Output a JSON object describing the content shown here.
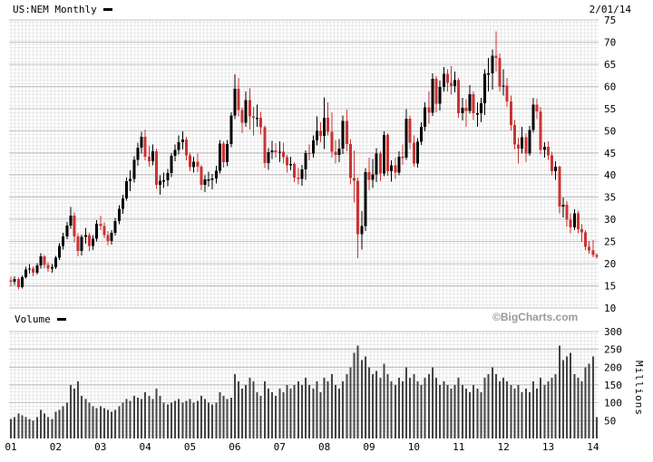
{
  "header": {
    "symbol_label": "US:NEM Monthly",
    "as_of_date": "2/01/14"
  },
  "volume": {
    "label": "Volume",
    "axis_unit": "Millions"
  },
  "watermark": "©BigCharts.com",
  "colors": {
    "up_candle": "#000000",
    "down_candle": "#cc3333",
    "volume_bar": "#444444",
    "grid_minor": "#d9d9d9",
    "grid_major": "#c3c3c3",
    "axis_text": "#000000"
  },
  "price_axis": {
    "ticks": [
      75,
      70,
      65,
      60,
      55,
      50,
      45,
      40,
      35,
      30,
      25,
      20,
      15,
      10
    ]
  },
  "volume_axis": {
    "ticks": [
      300,
      250,
      200,
      150,
      100,
      50
    ]
  },
  "x_axis": {
    "labels": [
      "01",
      "02",
      "03",
      "04",
      "05",
      "06",
      "07",
      "08",
      "09",
      "10",
      "11",
      "12",
      "13",
      "14"
    ]
  },
  "chart_data": {
    "type": "candlestick+volume-bar",
    "title": "US:NEM Monthly",
    "symbol": "US:NEM",
    "interval": "Monthly",
    "as_of": "2/01/14",
    "start_month": "2001-01",
    "price_range": [
      10,
      75
    ],
    "volume_range": [
      0,
      300
    ],
    "volume_unit": "Millions",
    "columns": [
      "open",
      "high",
      "low",
      "close",
      "volume_millions"
    ],
    "candles": [
      [
        16.2,
        17.1,
        14.9,
        15.9,
        55
      ],
      [
        15.9,
        17.2,
        15.2,
        16.5,
        60
      ],
      [
        16.5,
        16.9,
        14.2,
        14.7,
        70
      ],
      [
        14.7,
        17.4,
        14.4,
        16.9,
        65
      ],
      [
        16.9,
        19.3,
        16.6,
        18.7,
        60
      ],
      [
        18.7,
        19.9,
        17.8,
        18.9,
        55
      ],
      [
        18.9,
        19.4,
        17.2,
        18.0,
        50
      ],
      [
        18.0,
        20.1,
        17.6,
        19.6,
        60
      ],
      [
        19.6,
        22.4,
        18.9,
        21.7,
        80
      ],
      [
        21.7,
        22.0,
        19.0,
        19.7,
        70
      ],
      [
        19.7,
        20.3,
        18.2,
        18.9,
        60
      ],
      [
        18.9,
        19.9,
        18.0,
        19.2,
        55
      ],
      [
        19.2,
        21.8,
        18.8,
        21.3,
        75
      ],
      [
        21.3,
        24.6,
        20.8,
        24.0,
        80
      ],
      [
        24.0,
        27.0,
        23.2,
        26.1,
        90
      ],
      [
        26.1,
        29.4,
        25.5,
        28.6,
        100
      ],
      [
        28.6,
        32.8,
        27.9,
        30.9,
        150
      ],
      [
        30.9,
        31.6,
        24.8,
        26.1,
        140
      ],
      [
        26.1,
        26.9,
        21.6,
        22.9,
        160
      ],
      [
        22.9,
        26.6,
        21.9,
        26.0,
        120
      ],
      [
        26.0,
        28.1,
        24.5,
        26.5,
        110
      ],
      [
        26.5,
        27.0,
        22.8,
        24.0,
        100
      ],
      [
        24.0,
        26.5,
        23.1,
        25.6,
        90
      ],
      [
        25.6,
        29.8,
        25.0,
        29.0,
        85
      ],
      [
        29.0,
        30.9,
        27.6,
        28.5,
        90
      ],
      [
        28.5,
        29.3,
        25.7,
        26.5,
        85
      ],
      [
        26.5,
        27.4,
        24.1,
        25.1,
        80
      ],
      [
        25.1,
        27.6,
        24.3,
        27.0,
        75
      ],
      [
        27.0,
        30.3,
        26.4,
        29.6,
        80
      ],
      [
        29.6,
        33.2,
        28.9,
        32.4,
        90
      ],
      [
        32.4,
        35.6,
        31.3,
        34.7,
        100
      ],
      [
        34.7,
        39.4,
        34.2,
        38.6,
        110
      ],
      [
        38.6,
        41.1,
        36.4,
        39.1,
        105
      ],
      [
        39.1,
        44.2,
        38.3,
        43.4,
        120
      ],
      [
        43.4,
        47.3,
        42.1,
        46.2,
        115
      ],
      [
        46.2,
        49.8,
        44.9,
        48.6,
        110
      ],
      [
        48.6,
        50.3,
        43.3,
        44.1,
        130
      ],
      [
        44.1,
        46.6,
        41.9,
        43.1,
        120
      ],
      [
        43.1,
        46.9,
        42.2,
        45.4,
        110
      ],
      [
        45.4,
        46.0,
        36.9,
        37.8,
        140
      ],
      [
        37.8,
        39.9,
        35.6,
        38.7,
        120
      ],
      [
        38.7,
        40.6,
        37.1,
        38.8,
        100
      ],
      [
        38.8,
        41.4,
        37.5,
        40.5,
        95
      ],
      [
        40.5,
        45.0,
        39.5,
        44.3,
        100
      ],
      [
        44.3,
        46.9,
        43.1,
        45.7,
        105
      ],
      [
        45.7,
        48.9,
        44.6,
        47.4,
        110
      ],
      [
        47.4,
        49.9,
        45.8,
        48.0,
        100
      ],
      [
        48.0,
        48.6,
        43.3,
        44.4,
        105
      ],
      [
        44.4,
        45.1,
        40.9,
        41.8,
        110
      ],
      [
        41.8,
        44.1,
        40.6,
        43.0,
        100
      ],
      [
        43.0,
        44.9,
        40.7,
        41.9,
        105
      ],
      [
        41.9,
        42.3,
        36.6,
        37.8,
        120
      ],
      [
        37.8,
        39.9,
        36.2,
        39.0,
        110
      ],
      [
        39.0,
        40.8,
        37.4,
        39.0,
        100
      ],
      [
        39.0,
        40.3,
        36.8,
        39.2,
        95
      ],
      [
        39.2,
        42.1,
        38.1,
        41.0,
        100
      ],
      [
        41.0,
        47.9,
        40.4,
        47.1,
        130
      ],
      [
        47.1,
        47.6,
        41.7,
        42.9,
        120
      ],
      [
        42.9,
        47.9,
        42.0,
        47.0,
        110
      ],
      [
        47.0,
        54.2,
        46.3,
        53.4,
        115
      ],
      [
        53.4,
        62.7,
        52.6,
        59.5,
        180
      ],
      [
        59.5,
        61.9,
        53.2,
        54.7,
        160
      ],
      [
        54.7,
        55.3,
        49.4,
        51.8,
        140
      ],
      [
        51.8,
        58.9,
        50.9,
        56.9,
        150
      ],
      [
        56.9,
        59.6,
        50.3,
        53.2,
        170
      ],
      [
        53.2,
        55.4,
        48.9,
        52.9,
        160
      ],
      [
        52.9,
        55.9,
        50.9,
        52.9,
        130
      ],
      [
        52.9,
        54.3,
        49.1,
        50.8,
        120
      ],
      [
        50.8,
        51.2,
        41.6,
        42.7,
        160
      ],
      [
        42.7,
        46.1,
        41.2,
        45.2,
        140
      ],
      [
        45.2,
        47.7,
        43.6,
        45.6,
        130
      ],
      [
        45.6,
        47.2,
        43.9,
        45.2,
        120
      ],
      [
        45.2,
        47.6,
        42.9,
        45.3,
        140
      ],
      [
        45.3,
        47.3,
        42.6,
        44.0,
        130
      ],
      [
        44.0,
        44.5,
        40.6,
        42.2,
        150
      ],
      [
        42.2,
        44.1,
        41.1,
        42.5,
        140
      ],
      [
        42.5,
        42.9,
        38.4,
        39.4,
        150
      ],
      [
        39.4,
        41.6,
        37.9,
        39.1,
        160
      ],
      [
        39.1,
        42.3,
        37.6,
        41.3,
        150
      ],
      [
        41.3,
        45.6,
        38.9,
        45.0,
        170
      ],
      [
        45.0,
        46.9,
        43.3,
        44.9,
        150
      ],
      [
        44.9,
        48.9,
        43.9,
        47.8,
        140
      ],
      [
        47.8,
        53.2,
        46.7,
        50.0,
        160
      ],
      [
        50.0,
        51.9,
        47.4,
        48.8,
        130
      ],
      [
        48.8,
        57.5,
        45.9,
        52.9,
        170
      ],
      [
        52.9,
        56.4,
        48.9,
        49.8,
        160
      ],
      [
        49.8,
        54.2,
        43.9,
        45.3,
        180
      ],
      [
        45.3,
        47.9,
        42.6,
        44.5,
        150
      ],
      [
        44.5,
        48.1,
        42.9,
        46.0,
        140
      ],
      [
        46.0,
        53.4,
        44.7,
        52.2,
        160
      ],
      [
        52.2,
        54.8,
        45.4,
        47.0,
        180
      ],
      [
        47.0,
        48.1,
        37.9,
        39.3,
        200
      ],
      [
        39.3,
        45.6,
        33.8,
        38.7,
        240
      ],
      [
        38.7,
        39.4,
        21.2,
        26.7,
        260
      ],
      [
        26.7,
        31.9,
        23.2,
        28.5,
        220
      ],
      [
        28.5,
        41.6,
        27.4,
        40.7,
        230
      ],
      [
        40.7,
        43.9,
        36.6,
        38.9,
        200
      ],
      [
        38.9,
        43.6,
        37.1,
        40.2,
        180
      ],
      [
        40.2,
        46.1,
        38.4,
        44.8,
        190
      ],
      [
        44.8,
        45.4,
        38.6,
        40.4,
        170
      ],
      [
        40.4,
        49.9,
        39.7,
        49.0,
        210
      ],
      [
        49.0,
        49.5,
        39.8,
        40.9,
        180
      ],
      [
        40.9,
        43.3,
        38.5,
        42.2,
        160
      ],
      [
        42.2,
        43.9,
        39.1,
        40.6,
        150
      ],
      [
        40.6,
        45.4,
        39.9,
        44.1,
        170
      ],
      [
        44.1,
        46.9,
        42.3,
        43.9,
        160
      ],
      [
        43.9,
        54.9,
        43.4,
        52.7,
        200
      ],
      [
        52.7,
        53.4,
        45.9,
        47.3,
        170
      ],
      [
        47.3,
        48.9,
        41.9,
        42.6,
        180
      ],
      [
        42.6,
        48.3,
        41.7,
        47.5,
        160
      ],
      [
        47.5,
        51.9,
        46.8,
        50.9,
        150
      ],
      [
        50.9,
        56.4,
        49.9,
        55.3,
        170
      ],
      [
        55.3,
        58.9,
        51.6,
        54.0,
        180
      ],
      [
        54.0,
        62.9,
        53.3,
        61.7,
        200
      ],
      [
        61.7,
        62.3,
        54.2,
        56.1,
        170
      ],
      [
        56.1,
        61.3,
        54.6,
        59.9,
        150
      ],
      [
        59.9,
        64.4,
        58.9,
        62.8,
        160
      ],
      [
        62.8,
        63.9,
        58.9,
        60.8,
        150
      ],
      [
        60.8,
        64.6,
        58.1,
        60.1,
        140
      ],
      [
        60.1,
        63.4,
        58.6,
        61.4,
        150
      ],
      [
        61.4,
        61.9,
        52.9,
        53.9,
        170
      ],
      [
        53.9,
        57.4,
        52.3,
        55.2,
        150
      ],
      [
        55.2,
        57.1,
        50.9,
        54.5,
        140
      ],
      [
        54.5,
        60.3,
        53.8,
        58.2,
        130
      ],
      [
        58.2,
        58.9,
        52.4,
        53.9,
        150
      ],
      [
        53.9,
        56.4,
        50.9,
        53.9,
        140
      ],
      [
        53.9,
        57.4,
        51.9,
        56.2,
        130
      ],
      [
        56.2,
        63.9,
        53.5,
        62.8,
        170
      ],
      [
        62.8,
        66.4,
        58.9,
        62.9,
        180
      ],
      [
        62.9,
        68.4,
        59.3,
        66.9,
        200
      ],
      [
        66.9,
        72.4,
        63.4,
        66.4,
        180
      ],
      [
        66.4,
        67.4,
        58.9,
        60.0,
        160
      ],
      [
        60.0,
        63.9,
        57.9,
        60.2,
        170
      ],
      [
        60.2,
        61.9,
        55.4,
        56.6,
        160
      ],
      [
        56.6,
        57.9,
        50.1,
        51.3,
        150
      ],
      [
        51.3,
        52.4,
        45.8,
        46.9,
        140
      ],
      [
        46.9,
        48.4,
        42.6,
        46.0,
        150
      ],
      [
        46.0,
        50.9,
        44.9,
        48.5,
        130
      ],
      [
        48.5,
        49.4,
        42.9,
        44.9,
        140
      ],
      [
        44.9,
        51.1,
        44.3,
        50.2,
        130
      ],
      [
        50.2,
        57.4,
        49.6,
        55.9,
        160
      ],
      [
        55.9,
        57.2,
        52.6,
        54.4,
        140
      ],
      [
        54.4,
        55.4,
        44.6,
        45.7,
        170
      ],
      [
        45.7,
        47.4,
        43.9,
        46.4,
        150
      ],
      [
        46.4,
        47.6,
        43.4,
        44.4,
        160
      ],
      [
        44.4,
        45.3,
        39.9,
        40.9,
        170
      ],
      [
        40.9,
        43.1,
        38.9,
        41.9,
        180
      ],
      [
        41.9,
        42.1,
        31.4,
        32.9,
        260
      ],
      [
        32.9,
        34.9,
        30.4,
        33.3,
        220
      ],
      [
        33.3,
        34.1,
        28.4,
        29.9,
        230
      ],
      [
        29.9,
        31.4,
        26.9,
        28.2,
        240
      ],
      [
        28.2,
        32.3,
        27.6,
        31.4,
        180
      ],
      [
        31.4,
        31.9,
        26.9,
        27.8,
        170
      ],
      [
        27.8,
        28.9,
        24.9,
        27.1,
        160
      ],
      [
        27.1,
        27.6,
        23.1,
        23.8,
        200
      ],
      [
        23.8,
        25.1,
        22.3,
        23.0,
        210
      ],
      [
        23.0,
        25.3,
        21.4,
        22.0,
        230
      ],
      [
        22.0,
        22.4,
        21.1,
        21.5,
        60
      ]
    ]
  }
}
